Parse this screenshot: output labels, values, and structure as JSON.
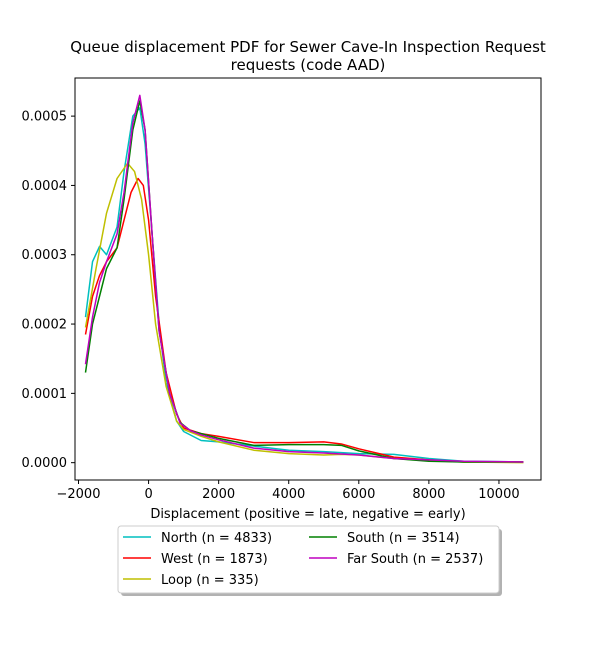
{
  "chart_data": {
    "type": "line",
    "title": "Queue displacement PDF for Sewer Cave-In Inspection Request requests (code AAD)",
    "title_lines": [
      "Queue displacement PDF for Sewer Cave-In Inspection Request",
      "requests (code AAD)"
    ],
    "xlabel": "Displacement (positive = late, negative = early)",
    "ylabel": "",
    "xlim": [
      -2100,
      11200
    ],
    "ylim": [
      -2.5e-05,
      0.000555
    ],
    "xticks": [
      -2000,
      0,
      2000,
      4000,
      6000,
      8000,
      10000
    ],
    "xtick_labels": [
      "−2000",
      "0",
      "2000",
      "4000",
      "6000",
      "8000",
      "10000"
    ],
    "yticks": [
      0.0,
      0.0001,
      0.0002,
      0.0003,
      0.0004,
      0.0005
    ],
    "ytick_labels": [
      "0.0000",
      "0.0001",
      "0.0002",
      "0.0003",
      "0.0004",
      "0.0005"
    ],
    "grid": false,
    "legend_position": "below",
    "series": [
      {
        "name": "North (n = 4833)",
        "color": "#00bfbf",
        "points": [
          [
            -1800,
            0.00021
          ],
          [
            -1600,
            0.00029
          ],
          [
            -1400,
            0.000312
          ],
          [
            -1200,
            0.0003
          ],
          [
            -900,
            0.00034
          ],
          [
            -700,
            0.00042
          ],
          [
            -450,
            0.0005
          ],
          [
            -250,
            0.000512
          ],
          [
            -100,
            0.00046
          ],
          [
            100,
            0.00033
          ],
          [
            300,
            0.0002
          ],
          [
            500,
            0.000115
          ],
          [
            800,
            6e-05
          ],
          [
            1000,
            4.5e-05
          ],
          [
            1500,
            3.2e-05
          ],
          [
            2000,
            3e-05
          ],
          [
            3000,
            2.4e-05
          ],
          [
            4000,
            1.8e-05
          ],
          [
            5000,
            1.6e-05
          ],
          [
            6000,
            1.3e-05
          ],
          [
            7000,
            1.2e-05
          ],
          [
            8000,
            6e-06
          ],
          [
            9000,
            2e-06
          ],
          [
            10700,
            1e-06
          ]
        ]
      },
      {
        "name": "West (n = 1873)",
        "color": "#ff0000",
        "points": [
          [
            -1800,
            0.000185
          ],
          [
            -1600,
            0.00024
          ],
          [
            -1400,
            0.00027
          ],
          [
            -1200,
            0.00029
          ],
          [
            -900,
            0.00031
          ],
          [
            -700,
            0.00035
          ],
          [
            -500,
            0.00039
          ],
          [
            -300,
            0.00041
          ],
          [
            -150,
            0.0004
          ],
          [
            0,
            0.00035
          ],
          [
            200,
            0.00024
          ],
          [
            500,
            0.00013
          ],
          [
            800,
            7e-05
          ],
          [
            1000,
            5e-05
          ],
          [
            1500,
            4.2e-05
          ],
          [
            2000,
            3.8e-05
          ],
          [
            3000,
            2.9e-05
          ],
          [
            4000,
            2.9e-05
          ],
          [
            5000,
            3e-05
          ],
          [
            5500,
            2.7e-05
          ],
          [
            6000,
            2e-05
          ],
          [
            7000,
            8e-06
          ],
          [
            8000,
            4e-06
          ],
          [
            9000,
            1e-06
          ],
          [
            10700,
            1e-06
          ]
        ]
      },
      {
        "name": "Loop (n = 335)",
        "color": "#bfbf00",
        "points": [
          [
            -1800,
            0.000195
          ],
          [
            -1500,
            0.00028
          ],
          [
            -1200,
            0.00036
          ],
          [
            -900,
            0.00041
          ],
          [
            -600,
            0.000432
          ],
          [
            -400,
            0.00042
          ],
          [
            -200,
            0.00038
          ],
          [
            0,
            0.0003
          ],
          [
            200,
            0.0002
          ],
          [
            500,
            0.00011
          ],
          [
            800,
            6e-05
          ],
          [
            1000,
            4.8e-05
          ],
          [
            1500,
            3.8e-05
          ],
          [
            2000,
            3e-05
          ],
          [
            3000,
            1.8e-05
          ],
          [
            4000,
            1.3e-05
          ],
          [
            5000,
            1.1e-05
          ],
          [
            5500,
            1.2e-05
          ],
          [
            6000,
            1.1e-05
          ],
          [
            7000,
            6e-06
          ],
          [
            8000,
            3e-06
          ],
          [
            9000,
            1e-06
          ],
          [
            10700,
            0.0
          ]
        ]
      },
      {
        "name": "South (n = 3514)",
        "color": "#008000",
        "points": [
          [
            -1800,
            0.00013
          ],
          [
            -1600,
            0.0002
          ],
          [
            -1400,
            0.00024
          ],
          [
            -1200,
            0.00028
          ],
          [
            -900,
            0.00031
          ],
          [
            -700,
            0.00038
          ],
          [
            -450,
            0.00048
          ],
          [
            -250,
            0.000522
          ],
          [
            -100,
            0.00048
          ],
          [
            100,
            0.00033
          ],
          [
            300,
            0.00019
          ],
          [
            600,
            0.0001
          ],
          [
            900,
            5.8e-05
          ],
          [
            1200,
            4.6e-05
          ],
          [
            1500,
            4.2e-05
          ],
          [
            2000,
            3.5e-05
          ],
          [
            3000,
            2.5e-05
          ],
          [
            4000,
            2.6e-05
          ],
          [
            5000,
            2.6e-05
          ],
          [
            5500,
            2.5e-05
          ],
          [
            6000,
            1.7e-05
          ],
          [
            7000,
            6e-06
          ],
          [
            8000,
            2e-06
          ],
          [
            9000,
            1e-06
          ],
          [
            10700,
            1e-06
          ]
        ]
      },
      {
        "name": "Far South (n = 2537)",
        "color": "#bf00bf",
        "points": [
          [
            -1800,
            0.000142
          ],
          [
            -1600,
            0.00021
          ],
          [
            -1400,
            0.00026
          ],
          [
            -1200,
            0.00029
          ],
          [
            -900,
            0.00033
          ],
          [
            -700,
            0.00039
          ],
          [
            -450,
            0.00049
          ],
          [
            -250,
            0.00053
          ],
          [
            -100,
            0.00048
          ],
          [
            100,
            0.00033
          ],
          [
            300,
            0.00019
          ],
          [
            600,
            0.0001
          ],
          [
            900,
            5.7e-05
          ],
          [
            1200,
            4.6e-05
          ],
          [
            1500,
            4e-05
          ],
          [
            2000,
            3.3e-05
          ],
          [
            3000,
            2.1e-05
          ],
          [
            4000,
            1.6e-05
          ],
          [
            5000,
            1.4e-05
          ],
          [
            6000,
            1.1e-05
          ],
          [
            7000,
            6e-06
          ],
          [
            8000,
            4e-06
          ],
          [
            9000,
            2e-06
          ],
          [
            10700,
            1e-06
          ]
        ]
      }
    ]
  }
}
